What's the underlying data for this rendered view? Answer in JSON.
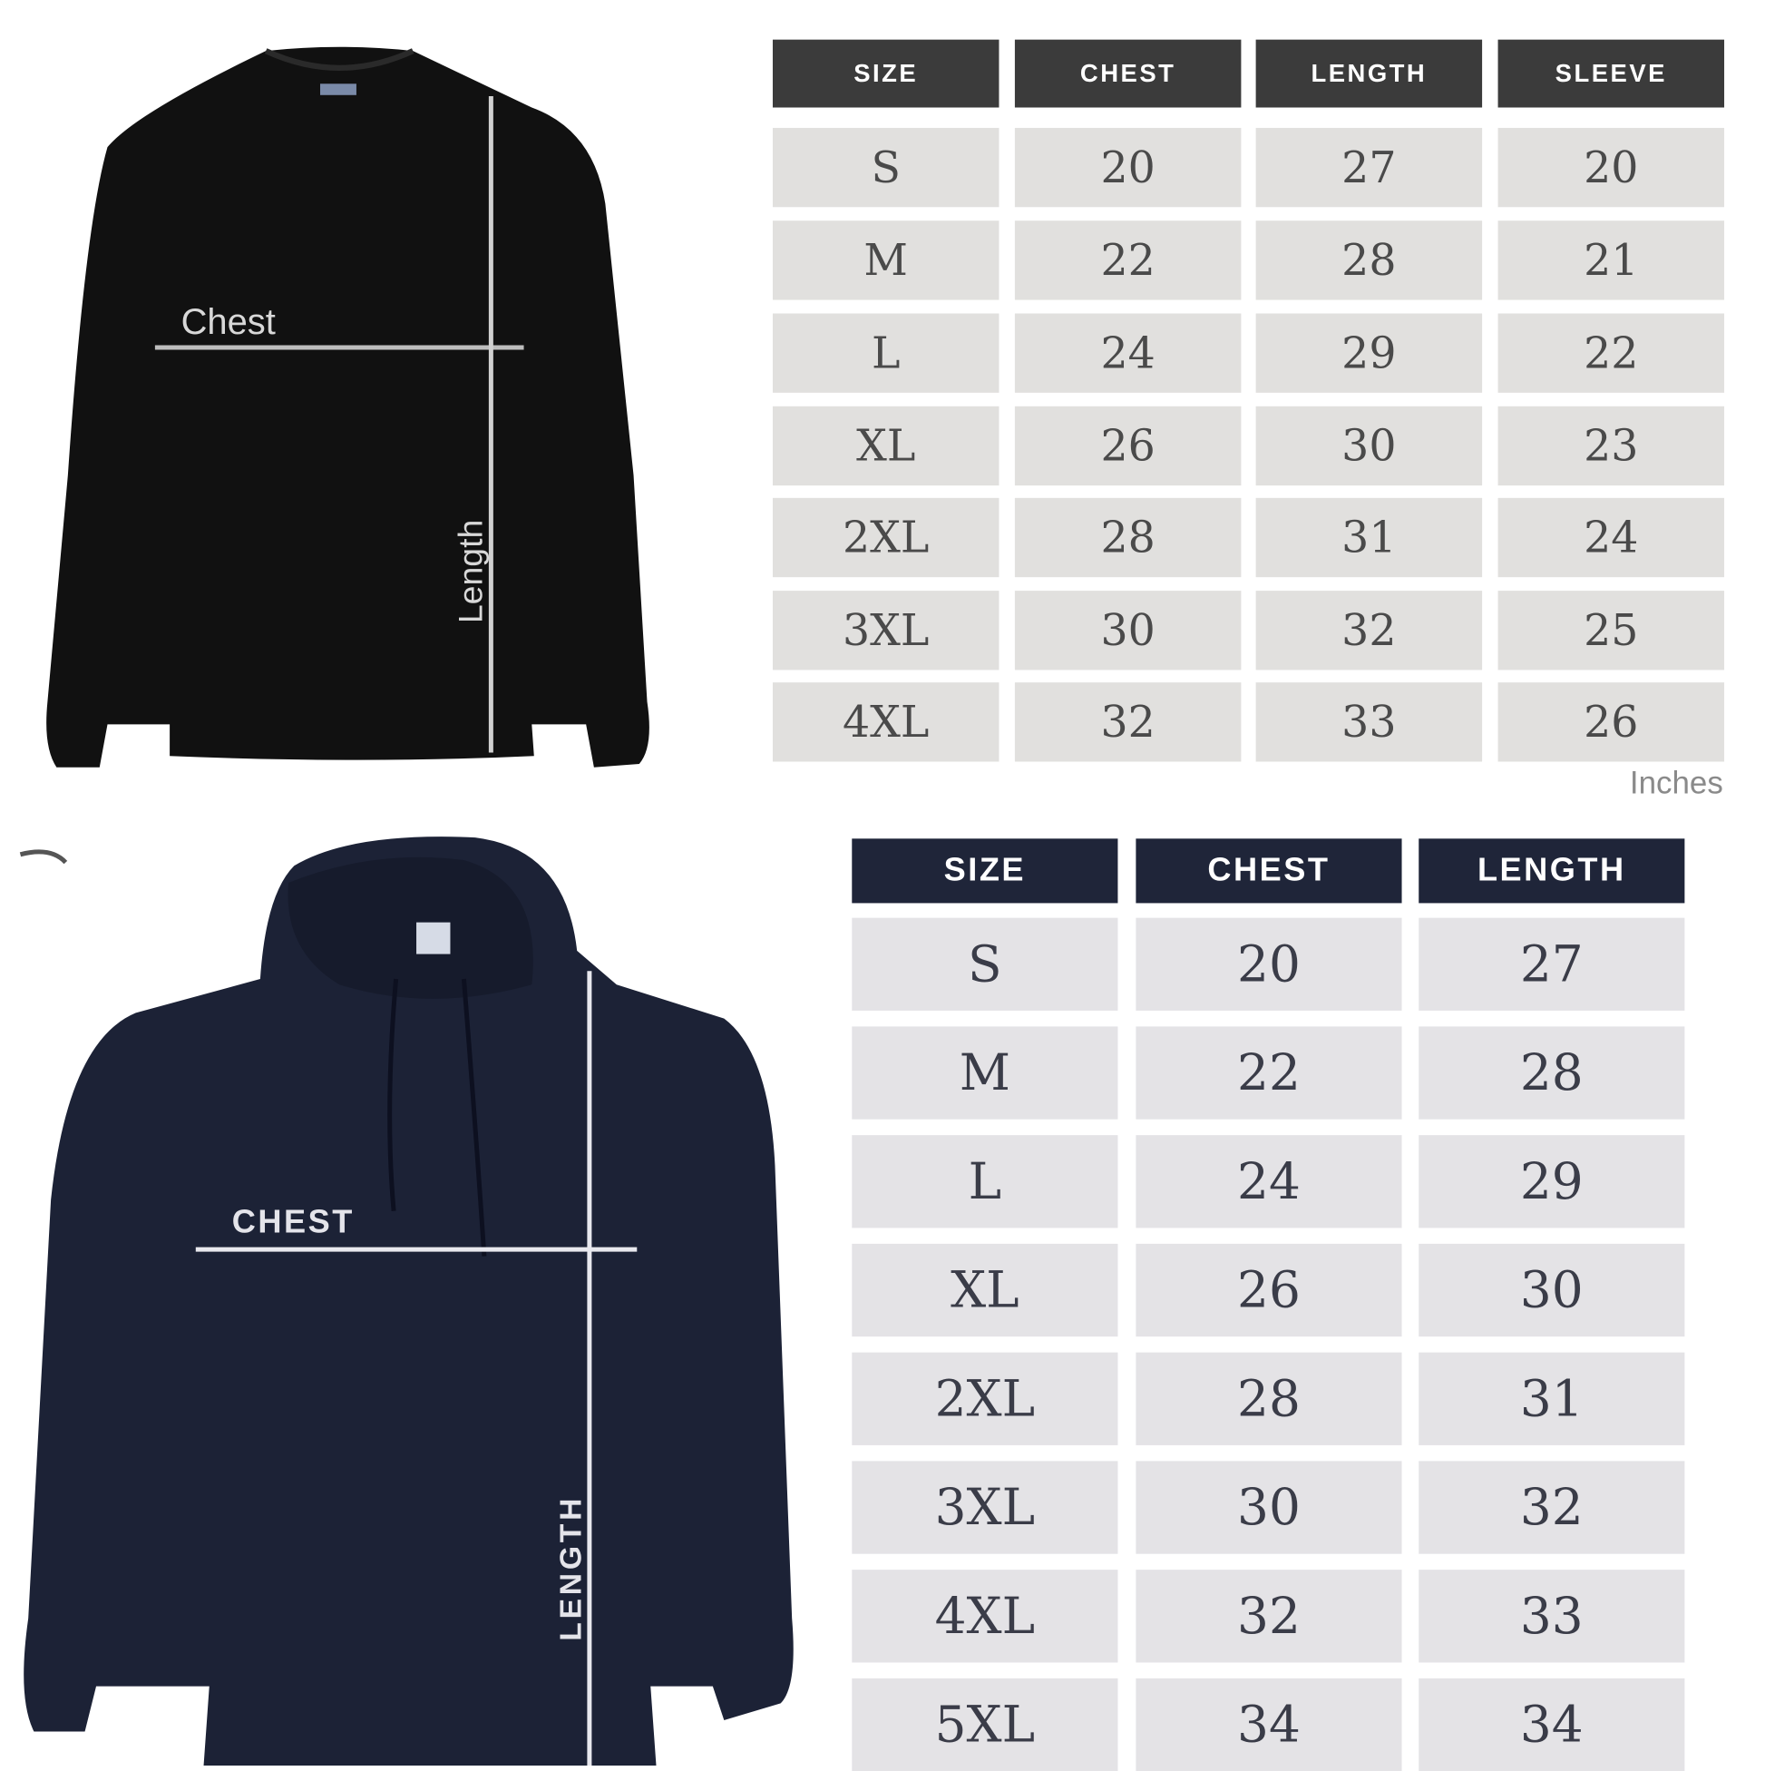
{
  "sweatshirt": {
    "chest_label": "Chest",
    "length_label": "Length",
    "garment_color": "#111111",
    "table": {
      "headers": [
        "SIZE",
        "CHEST",
        "LENGTH",
        "SLEEVE"
      ],
      "rows": [
        [
          "S",
          "20",
          "27",
          "20"
        ],
        [
          "M",
          "22",
          "28",
          "21"
        ],
        [
          "L",
          "24",
          "29",
          "22"
        ],
        [
          "XL",
          "26",
          "30",
          "23"
        ],
        [
          "2XL",
          "28",
          "31",
          "24"
        ],
        [
          "3XL",
          "30",
          "32",
          "25"
        ],
        [
          "4XL",
          "32",
          "33",
          "26"
        ]
      ],
      "unit": "Inches",
      "header_color": "#3b3b3b"
    }
  },
  "hoodie": {
    "chest_label": "CHEST",
    "length_label": "LENGTH",
    "garment_color": "#1c2236",
    "table": {
      "headers": [
        "SIZE",
        "CHEST",
        "LENGTH"
      ],
      "rows": [
        [
          "S",
          "20",
          "27"
        ],
        [
          "M",
          "22",
          "28"
        ],
        [
          "L",
          "24",
          "29"
        ],
        [
          "XL",
          "26",
          "30"
        ],
        [
          "2XL",
          "28",
          "31"
        ],
        [
          "3XL",
          "30",
          "32"
        ],
        [
          "4XL",
          "32",
          "33"
        ],
        [
          "5XL",
          "34",
          "34"
        ]
      ],
      "header_color": "#1f2539"
    }
  }
}
